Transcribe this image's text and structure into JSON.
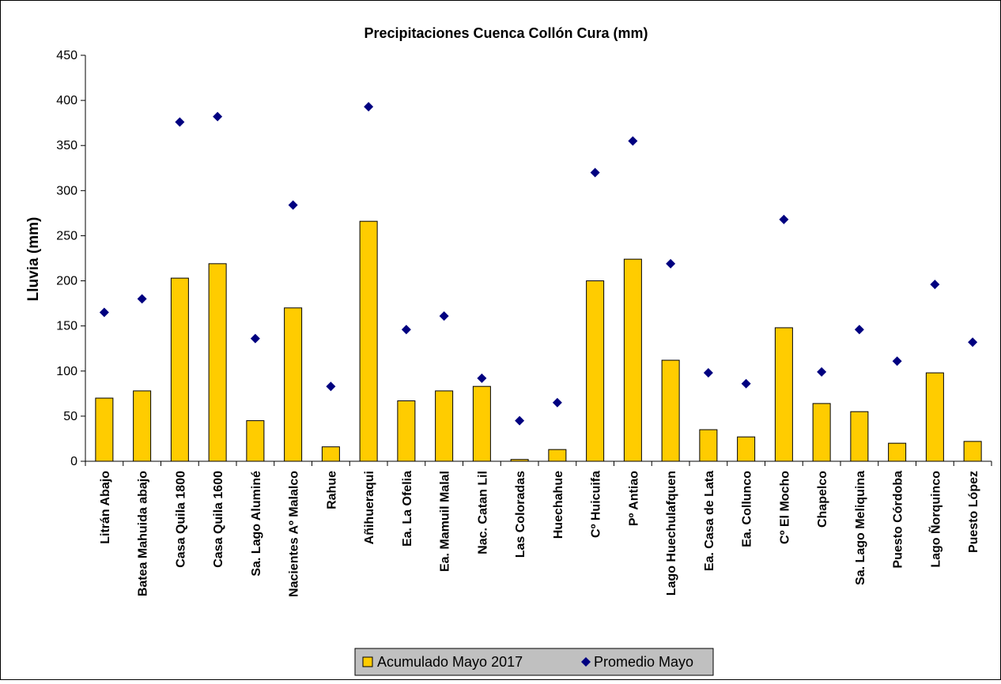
{
  "chart_data": {
    "type": "bar",
    "title": "Precipitaciones Cuenca Collón Cura (mm)",
    "xlabel": "",
    "ylabel": "Lluvia (mm)",
    "ylim": [
      0,
      450
    ],
    "yticks": [
      0,
      50,
      100,
      150,
      200,
      250,
      300,
      350,
      400,
      450
    ],
    "grid": false,
    "legend_position": "bottom",
    "categories": [
      "Litrán Abajo",
      "Batea Mahuida abajo",
      "Casa Quila 1800",
      "Casa Quila 1600",
      "Sa. Lago Aluminé",
      "Nacientes Aº Malalco",
      "Rahue",
      "Añihueraqui",
      "Ea. La Ofelia",
      "Ea. Mamuil Malal",
      "Nac. Catan Lil",
      "Las Coloradas",
      "Huechahue",
      "Cº Huicuifa",
      "Pº Antiao",
      "Lago Huechulafquen",
      "Ea. Casa de Lata",
      "Ea. Collunco",
      "Cº El Mocho",
      "Chapelco",
      "Sa. Lago Meliquina",
      "Puesto Córdoba",
      "Lago Ñorquinco",
      "Puesto López"
    ],
    "series": [
      {
        "name": "Acumulado Mayo 2017",
        "kind": "bar",
        "color": "#FFCC00",
        "values": [
          70,
          78,
          203,
          219,
          45,
          170,
          16,
          266,
          67,
          78,
          83,
          2,
          13,
          200,
          224,
          112,
          35,
          27,
          148,
          64,
          55,
          20,
          98,
          22
        ]
      },
      {
        "name": "Promedio Mayo",
        "kind": "scatter",
        "marker": "diamond",
        "color": "#000080",
        "values": [
          165,
          180,
          376,
          382,
          136,
          284,
          83,
          393,
          146,
          161,
          92,
          45,
          65,
          320,
          355,
          219,
          98,
          86,
          268,
          99,
          146,
          111,
          196,
          132
        ]
      }
    ]
  }
}
